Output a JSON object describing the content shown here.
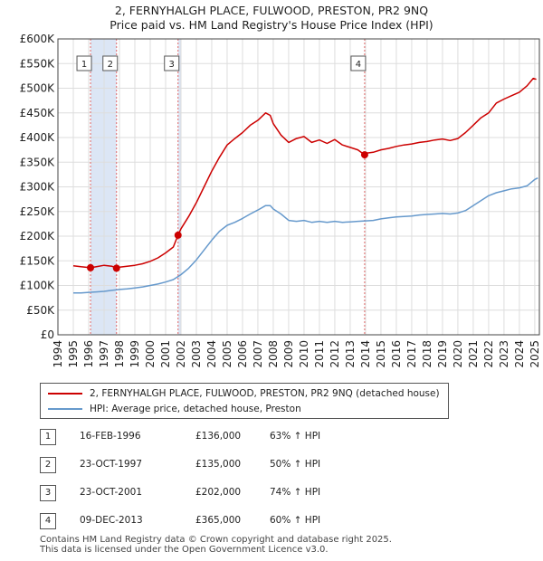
{
  "chart_data": {
    "type": "line",
    "title": "2, FERNYHALGH PLACE, FULWOOD, PRESTON, PR2 9NQ",
    "subtitle": "Price paid vs. HM Land Registry's House Price Index (HPI)",
    "xlabel": "",
    "ylabel": "",
    "xlim": [
      1994,
      2025.3
    ],
    "ylim": [
      0,
      600000
    ],
    "y_ticks": [
      0,
      50000,
      100000,
      150000,
      200000,
      250000,
      300000,
      350000,
      400000,
      450000,
      500000,
      550000,
      600000
    ],
    "y_tick_labels": [
      "£0",
      "£50K",
      "£100K",
      "£150K",
      "£200K",
      "£250K",
      "£300K",
      "£350K",
      "£400K",
      "£450K",
      "£500K",
      "£550K",
      "£600K"
    ],
    "x_ticks": [
      1994,
      1995,
      1996,
      1997,
      1998,
      1999,
      2000,
      2001,
      2002,
      2003,
      2004,
      2005,
      2006,
      2007,
      2008,
      2009,
      2010,
      2011,
      2012,
      2013,
      2014,
      2015,
      2016,
      2017,
      2018,
      2019,
      2020,
      2021,
      2022,
      2023,
      2024,
      2025
    ],
    "x_tick_labels": [
      "1994",
      "1995",
      "1996",
      "1997",
      "1998",
      "1999",
      "2000",
      "2001",
      "2002",
      "2003",
      "2004",
      "2005",
      "2006",
      "2007",
      "2008",
      "2009",
      "2010",
      "2011",
      "2012",
      "2013",
      "2014",
      "2015",
      "2016",
      "2017",
      "2018",
      "2019",
      "2020",
      "2021",
      "2022",
      "2023",
      "2024",
      "2025"
    ],
    "grid": true,
    "series": [
      {
        "name": "2, FERNYHALGH PLACE, FULWOOD, PRESTON, PR2 9NQ (detached house)",
        "color": "#cc0000",
        "x": [
          1995.0,
          1995.5,
          1996.12,
          1996.5,
          1997.0,
          1997.5,
          1997.81,
          1998.0,
          1998.5,
          1999.0,
          1999.5,
          2000.0,
          2000.5,
          2001.0,
          2001.5,
          2001.81,
          2002.0,
          2002.5,
          2003.0,
          2003.5,
          2004.0,
          2004.5,
          2005.0,
          2005.5,
          2006.0,
          2006.5,
          2007.0,
          2007.5,
          2007.8,
          2008.0,
          2008.5,
          2009.0,
          2009.5,
          2010.0,
          2010.5,
          2011.0,
          2011.5,
          2012.0,
          2012.5,
          2013.0,
          2013.5,
          2013.94,
          2014.0,
          2014.5,
          2015.0,
          2015.5,
          2016.0,
          2016.5,
          2017.0,
          2017.5,
          2018.0,
          2018.5,
          2019.0,
          2019.5,
          2020.0,
          2020.5,
          2021.0,
          2021.5,
          2022.0,
          2022.5,
          2023.0,
          2023.5,
          2024.0,
          2024.5,
          2024.9,
          2025.1
        ],
        "values": [
          140000,
          138000,
          136000,
          138000,
          141000,
          139000,
          135000,
          137000,
          139000,
          141000,
          144000,
          149000,
          156000,
          166000,
          178000,
          202000,
          215000,
          240000,
          268000,
          300000,
          332000,
          360000,
          385000,
          398000,
          410000,
          425000,
          435000,
          450000,
          445000,
          428000,
          405000,
          390000,
          398000,
          402000,
          390000,
          395000,
          388000,
          396000,
          385000,
          380000,
          375000,
          365000,
          368000,
          370000,
          375000,
          378000,
          382000,
          385000,
          387000,
          390000,
          392000,
          395000,
          397000,
          394000,
          398000,
          410000,
          425000,
          440000,
          450000,
          470000,
          478000,
          485000,
          492000,
          505000,
          520000,
          518000
        ]
      },
      {
        "name": "HPI: Average price, detached house, Preston",
        "color": "#6699cc",
        "x": [
          1995.0,
          1995.5,
          1996.0,
          1996.5,
          1997.0,
          1997.5,
          1998.0,
          1998.5,
          1999.0,
          1999.5,
          2000.0,
          2000.5,
          2001.0,
          2001.5,
          2002.0,
          2002.5,
          2003.0,
          2003.5,
          2004.0,
          2004.5,
          2005.0,
          2005.5,
          2006.0,
          2006.5,
          2007.0,
          2007.5,
          2007.8,
          2008.0,
          2008.5,
          2009.0,
          2009.5,
          2010.0,
          2010.5,
          2011.0,
          2011.5,
          2012.0,
          2012.5,
          2013.0,
          2013.5,
          2014.0,
          2014.5,
          2015.0,
          2015.5,
          2016.0,
          2016.5,
          2017.0,
          2017.5,
          2018.0,
          2018.5,
          2019.0,
          2019.5,
          2020.0,
          2020.5,
          2021.0,
          2021.5,
          2022.0,
          2022.5,
          2023.0,
          2023.5,
          2024.0,
          2024.5,
          2025.0,
          2025.2
        ],
        "values": [
          85000,
          85000,
          86000,
          87000,
          88000,
          90000,
          92000,
          93000,
          95000,
          97000,
          100000,
          103000,
          107000,
          112000,
          122000,
          135000,
          152000,
          172000,
          192000,
          210000,
          222000,
          228000,
          236000,
          245000,
          253000,
          262000,
          262000,
          255000,
          245000,
          232000,
          230000,
          232000,
          228000,
          230000,
          228000,
          230000,
          228000,
          229000,
          230000,
          231000,
          232000,
          235000,
          237000,
          239000,
          240000,
          241000,
          243000,
          244000,
          245000,
          246000,
          245000,
          247000,
          252000,
          262000,
          272000,
          282000,
          288000,
          292000,
          296000,
          298000,
          302000,
          315000,
          318000
        ]
      }
    ],
    "markers": [
      {
        "label": "1",
        "x": 1996.12,
        "value": 136000
      },
      {
        "label": "2",
        "x": 1997.81,
        "value": 135000
      },
      {
        "label": "3",
        "x": 2001.81,
        "value": 202000
      },
      {
        "label": "4",
        "x": 2013.94,
        "value": 365000
      }
    ],
    "legend": {
      "position": "below",
      "entries": [
        "2, FERNYHALGH PLACE, FULWOOD, PRESTON, PR2 9NQ (detached house)",
        "HPI: Average price, detached house, Preston"
      ]
    }
  },
  "sales": [
    {
      "num": "1",
      "date": "16-FEB-1996",
      "price": "£136,000",
      "hpi": "63% ↑ HPI"
    },
    {
      "num": "2",
      "date": "23-OCT-1997",
      "price": "£135,000",
      "hpi": "50% ↑ HPI"
    },
    {
      "num": "3",
      "date": "23-OCT-2001",
      "price": "£202,000",
      "hpi": "74% ↑ HPI"
    },
    {
      "num": "4",
      "date": "09-DEC-2013",
      "price": "£365,000",
      "hpi": "60% ↑ HPI"
    }
  ],
  "footer": {
    "line1": "Contains HM Land Registry data © Crown copyright and database right 2025.",
    "line2": "This data is licensed under the Open Government Licence v3.0."
  },
  "colors": {
    "property_line": "#cc0000",
    "hpi_line": "#6699cc",
    "shade": "#dce6f5",
    "grid": "#dddddd"
  }
}
